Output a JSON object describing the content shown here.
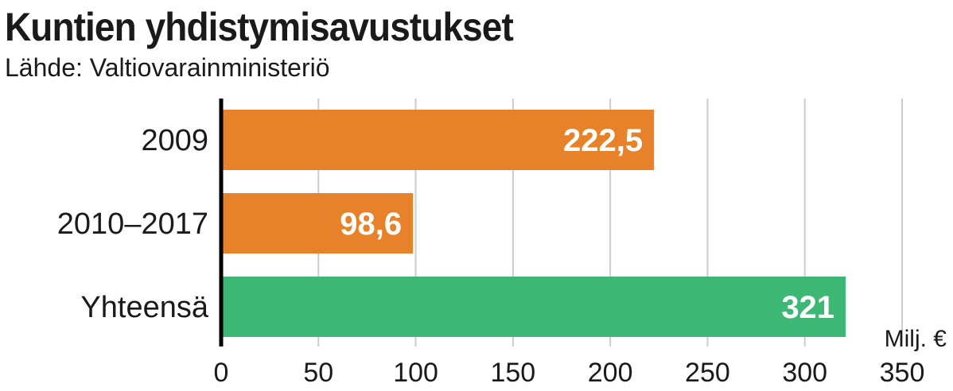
{
  "chart_data": {
    "type": "bar",
    "orientation": "horizontal",
    "title": "Kuntien yhdistymisavustukset",
    "subtitle": "Lähde: Valtiovarainministeriö",
    "unit": "Milj. €",
    "categories": [
      "2009",
      "2010–2017",
      "Yhteensä"
    ],
    "values": [
      222.5,
      98.6,
      321
    ],
    "value_labels": [
      "222,5",
      "98,6",
      "321"
    ],
    "bar_colors": [
      "#E8822A",
      "#E8822A",
      "#3DB874"
    ],
    "xlim": [
      0,
      350
    ],
    "x_ticks": [
      0,
      50,
      100,
      150,
      200,
      250,
      300,
      350
    ],
    "x_tick_labels": [
      "0",
      "50",
      "100",
      "150",
      "200",
      "250",
      "300",
      "350"
    ],
    "grid": true,
    "grid_color": "#cccccc",
    "axis_color": "#000000"
  }
}
